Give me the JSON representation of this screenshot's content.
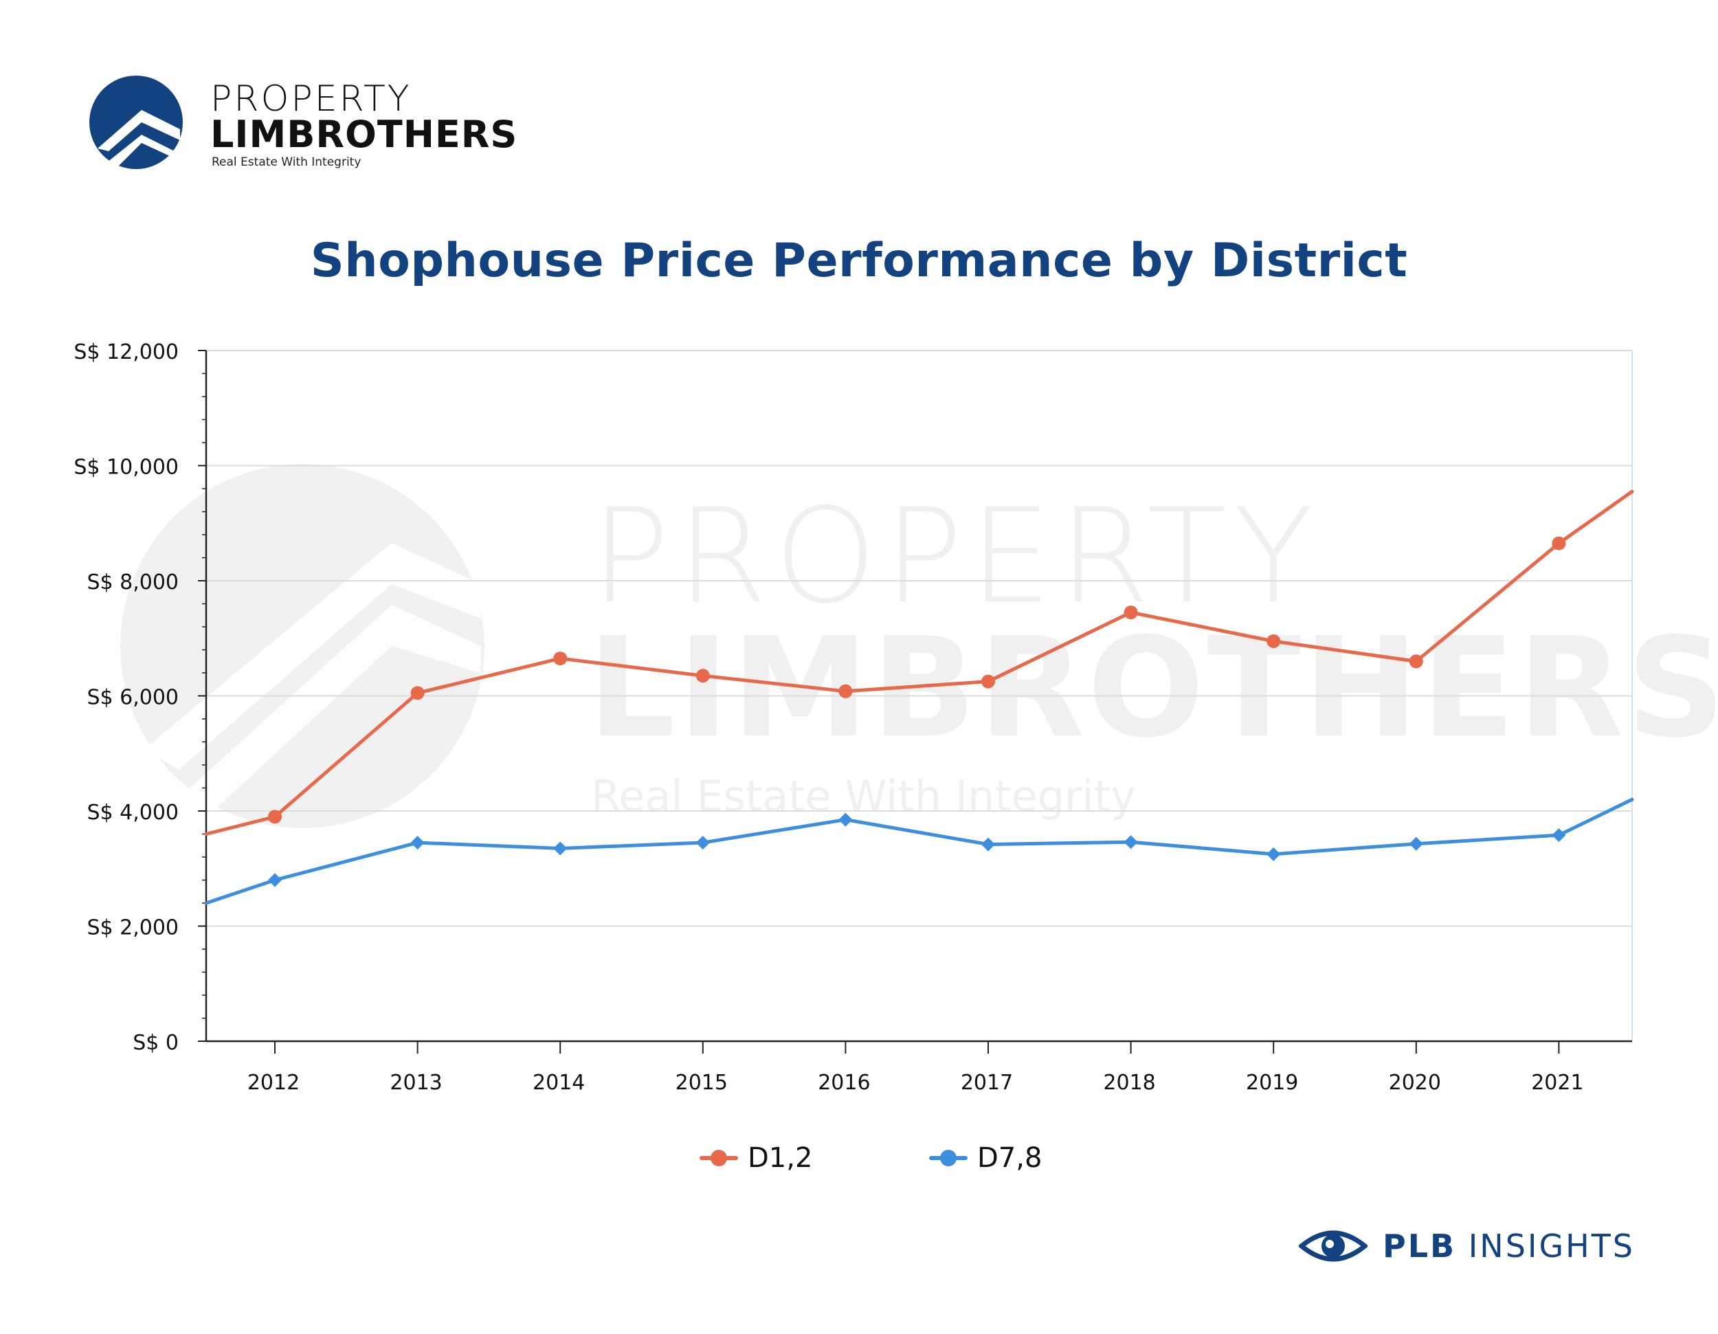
{
  "brand": {
    "line1": "PROPERTY",
    "line2": "LIMBROTHERS",
    "tagline": "Real Estate With Integrity",
    "footer_bold": "PLB",
    "footer_rest": "INSIGHTS",
    "color": "#12427f"
  },
  "watermark": {
    "line1": "PROPERTY",
    "line2": "LIMBROTHERS",
    "line3": "Real Estate With Integrity"
  },
  "chart_data": {
    "type": "line",
    "title": "Shophouse Price Performance by District",
    "xlabel": "",
    "ylabel": "",
    "categories": [
      "2012",
      "2013",
      "2014",
      "2015",
      "2016",
      "2017",
      "2018",
      "2019",
      "2020",
      "2021"
    ],
    "ylim": [
      0,
      12000
    ],
    "ytick_values": [
      0,
      2000,
      4000,
      6000,
      8000,
      10000,
      12000
    ],
    "ytick_labels": [
      "S$ 0",
      "S$ 2,000",
      "S$ 4,000",
      "S$ 6,000",
      "S$ 8,000",
      "S$ 10,000",
      "S$ 12,000"
    ],
    "grid": true,
    "legend_position": "bottom",
    "series": [
      {
        "name": "D1,2",
        "color": "#e8694a",
        "marker": "circle",
        "values": [
          3900,
          6050,
          6650,
          6350,
          6080,
          6250,
          7450,
          6950,
          6600,
          8650
        ],
        "left_edge_value": 3600,
        "right_edge_value": 9550
      },
      {
        "name": "D7,8",
        "color": "#3b8ee0",
        "marker": "diamond",
        "values": [
          2800,
          3450,
          3350,
          3450,
          3850,
          3420,
          3460,
          3250,
          3430,
          3580
        ],
        "left_edge_value": 2400,
        "right_edge_value": 4200
      }
    ]
  }
}
